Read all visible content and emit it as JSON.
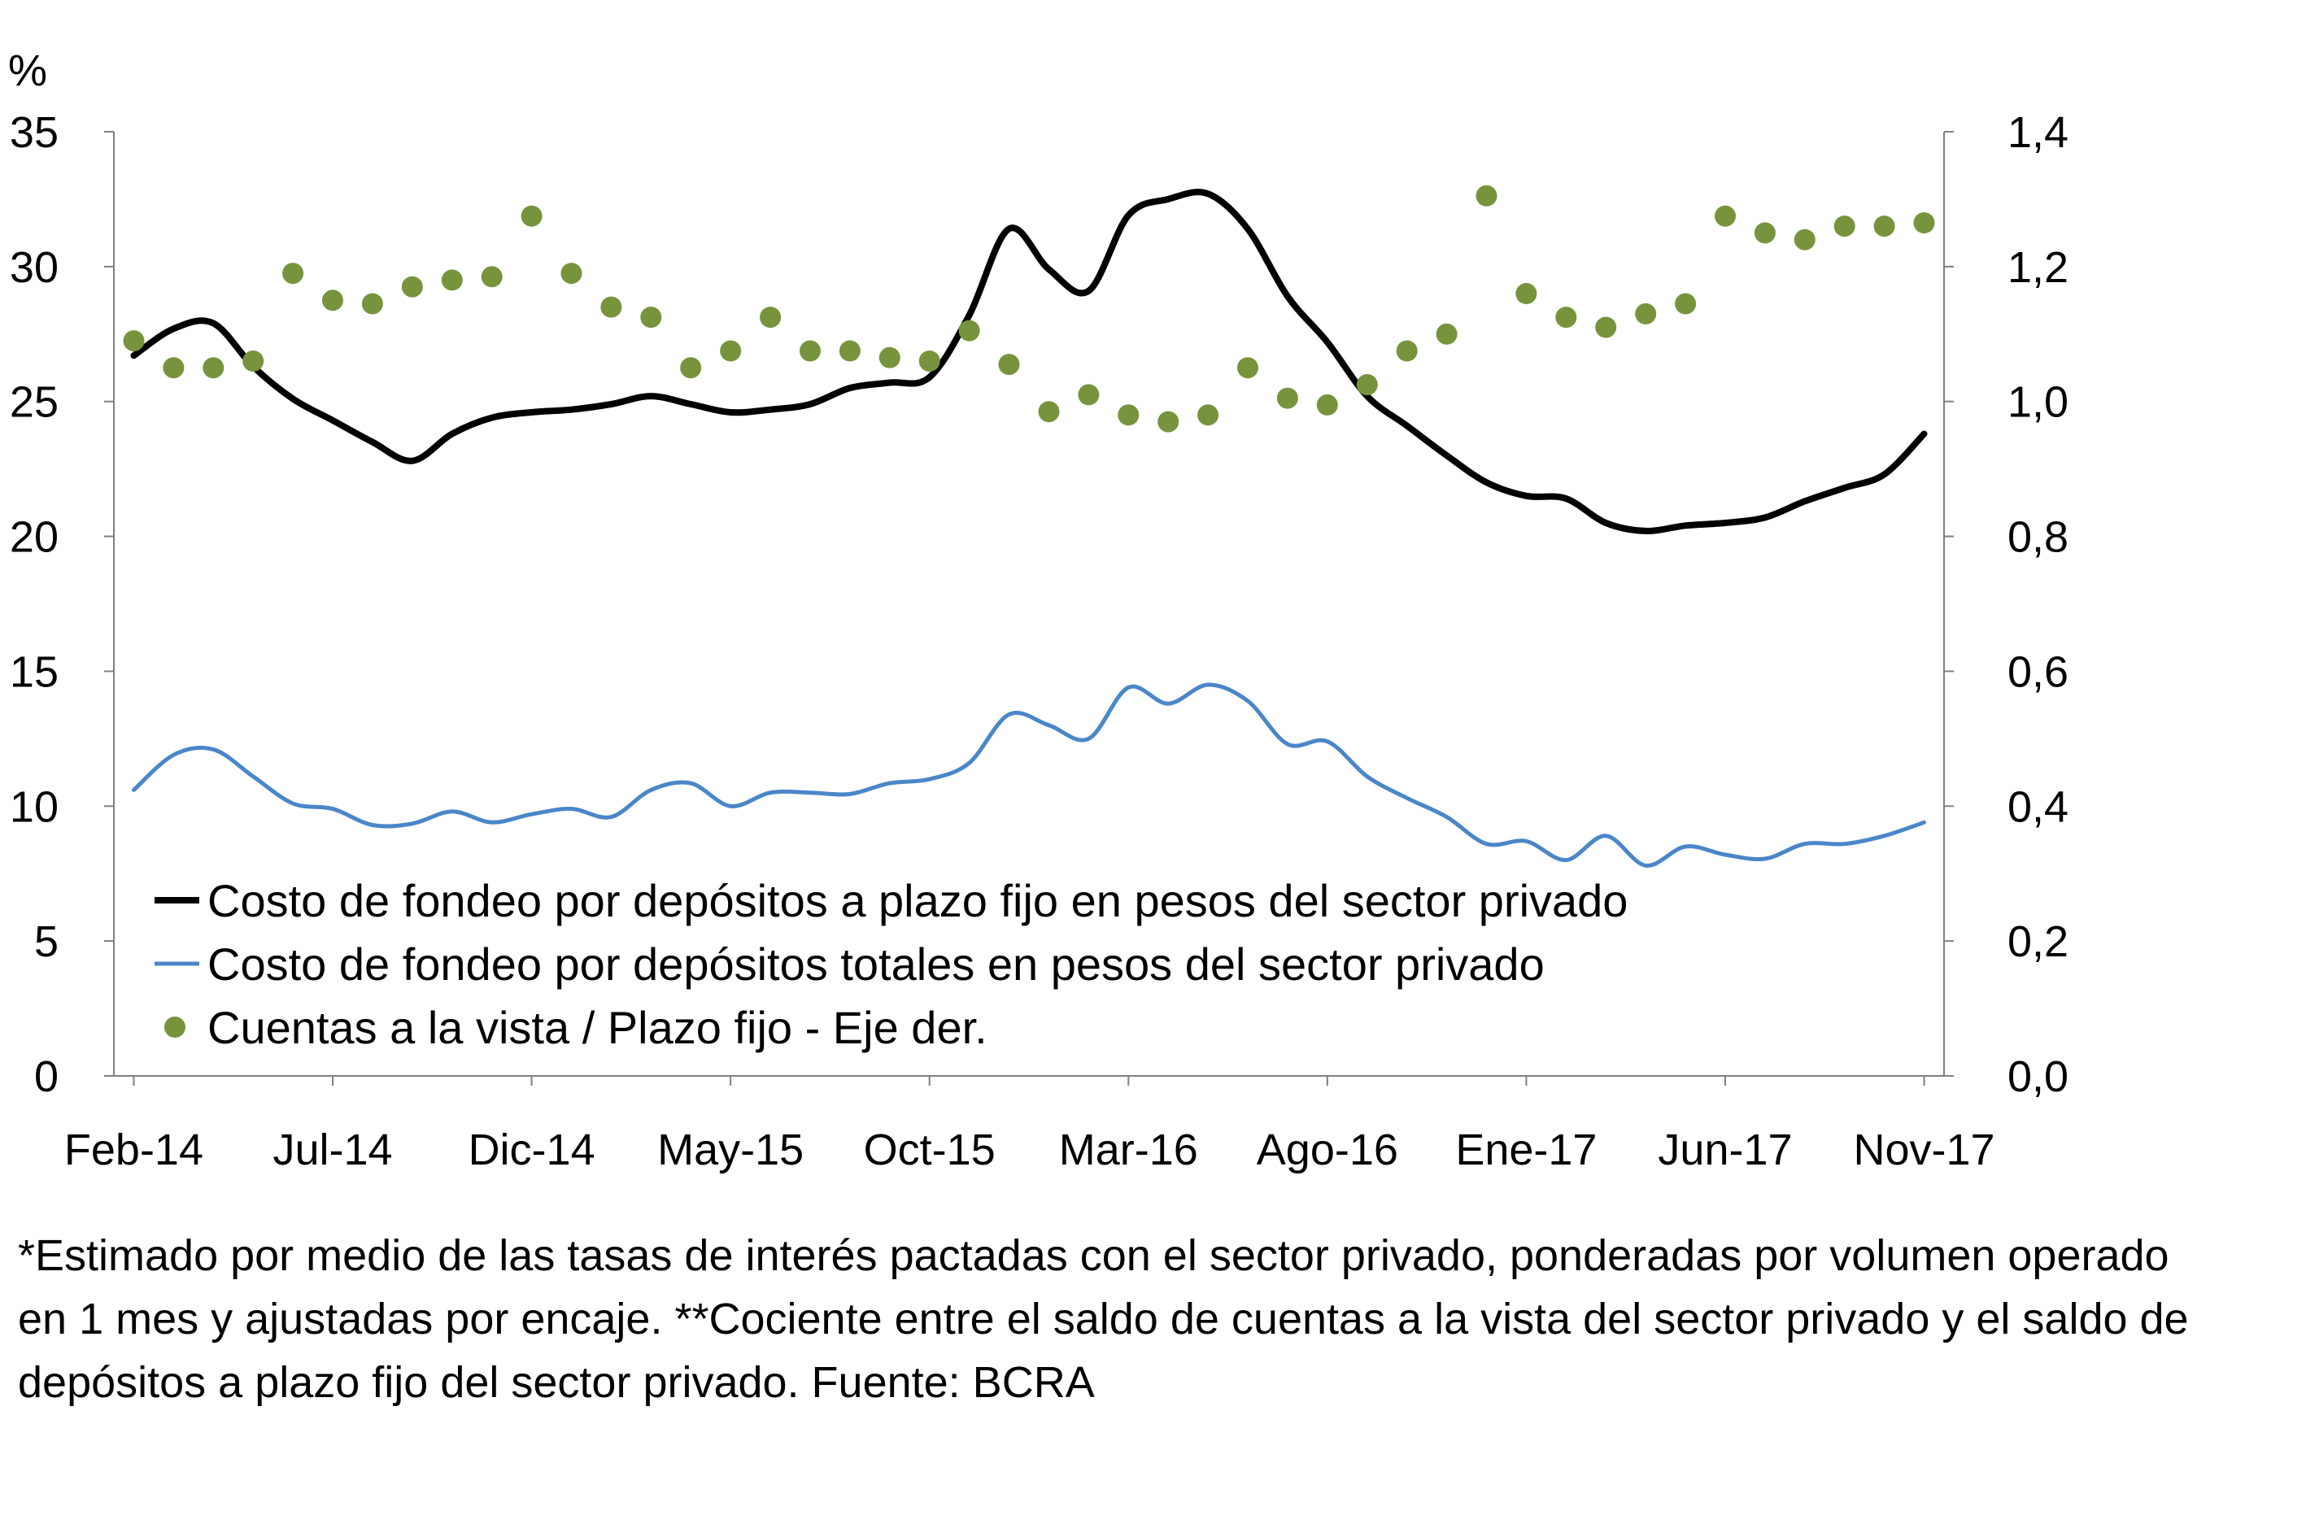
{
  "chart_data": {
    "type": "line",
    "unit_label": "%",
    "x_tick_labels": [
      "Feb-14",
      "Jul-14",
      "Dic-14",
      "May-15",
      "Oct-15",
      "Mar-16",
      "Ago-16",
      "Ene-17",
      "Jun-17",
      "Nov-17"
    ],
    "y_left": {
      "ylim": [
        0,
        35
      ],
      "ticks": [
        "0",
        "5",
        "10",
        "15",
        "20",
        "25",
        "30",
        "35"
      ]
    },
    "y_right": {
      "ylim": [
        0,
        1.4
      ],
      "ticks": [
        "0,0",
        "0,2",
        "0,4",
        "0,6",
        "0,8",
        "1,0",
        "1,2",
        "1,4"
      ]
    },
    "x": [
      "Feb-14",
      "Mar-14",
      "Abr-14",
      "May-14",
      "Jun-14",
      "Jul-14",
      "Ago-14",
      "Sep-14",
      "Oct-14",
      "Nov-14",
      "Dic-14",
      "Ene-15",
      "Feb-15",
      "Mar-15",
      "Abr-15",
      "May-15",
      "Jun-15",
      "Jul-15",
      "Ago-15",
      "Sep-15",
      "Oct-15",
      "Nov-15",
      "Dic-15",
      "Ene-16",
      "Feb-16",
      "Mar-16",
      "Abr-16",
      "May-16",
      "Jun-16",
      "Jul-16",
      "Ago-16",
      "Sep-16",
      "Oct-16",
      "Nov-16",
      "Dic-16",
      "Ene-17",
      "Feb-17",
      "Mar-17",
      "Abr-17",
      "May-17",
      "Jun-17",
      "Jul-17",
      "Ago-17",
      "Sep-17",
      "Oct-17",
      "Nov-17"
    ],
    "series": [
      {
        "name": "Costo de fondeo por depósitos a plazo fijo en pesos del sector privado",
        "axis": "left",
        "style": "line",
        "color": "#000000",
        "values": [
          26.7,
          27.7,
          27.9,
          26.3,
          25.1,
          24.3,
          23.5,
          22.8,
          23.8,
          24.4,
          24.6,
          24.7,
          24.9,
          25.2,
          24.9,
          24.6,
          24.7,
          24.9,
          25.5,
          25.7,
          25.9,
          28.2,
          31.4,
          29.9,
          29.1,
          31.9,
          32.5,
          32.7,
          31.4,
          28.9,
          27.2,
          25.2,
          24.1,
          23.0,
          22.0,
          21.5,
          21.4,
          20.5,
          20.2,
          20.4,
          20.5,
          20.7,
          21.3,
          21.8,
          22.3,
          23.8
        ]
      },
      {
        "name": "Costo de fondeo por depósitos totales en pesos del sector privado",
        "axis": "left",
        "style": "line",
        "color": "#4A86C8",
        "values": [
          10.6,
          11.9,
          12.1,
          11.1,
          10.1,
          9.9,
          9.3,
          9.35,
          9.8,
          9.4,
          9.7,
          9.9,
          9.6,
          10.6,
          10.85,
          10.0,
          10.5,
          10.5,
          10.45,
          10.85,
          11.0,
          11.6,
          13.4,
          13.0,
          12.5,
          14.4,
          13.8,
          14.5,
          13.9,
          12.3,
          12.4,
          11.1,
          10.3,
          9.6,
          8.6,
          8.7,
          8.0,
          8.9,
          7.8,
          8.5,
          8.2,
          8.05,
          8.6,
          8.6,
          8.9,
          9.4
        ]
      },
      {
        "name": "Cuentas a la vista / Plazo fijo - Eje der.",
        "axis": "right",
        "style": "markers",
        "color": "#77933C",
        "values": [
          1.09,
          1.05,
          1.05,
          1.06,
          1.19,
          1.15,
          1.145,
          1.17,
          1.18,
          1.185,
          1.275,
          1.19,
          1.14,
          1.125,
          1.05,
          1.075,
          1.125,
          1.075,
          1.075,
          1.065,
          1.06,
          1.105,
          1.055,
          0.985,
          1.01,
          0.98,
          0.97,
          0.98,
          1.05,
          1.005,
          0.995,
          1.025,
          1.075,
          1.1,
          1.305,
          1.16,
          1.125,
          1.11,
          1.13,
          1.145,
          1.275,
          1.25,
          1.24,
          1.26,
          1.26,
          1.265
        ]
      }
    ]
  },
  "footnote": "*Estimado por medio de las tasas de interés pactadas con el sector privado, ponderadas por volumen operado en 1 mes y ajustadas por encaje. **Cociente entre el saldo de cuentas a la vista del sector privado y el saldo de depósitos a plazo fijo del sector privado. Fuente: BCRA"
}
